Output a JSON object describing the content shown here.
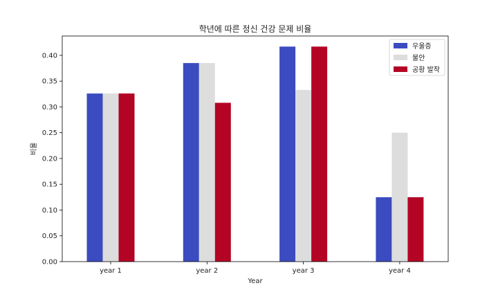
{
  "chart_data": {
    "type": "bar",
    "title": "학년에 따른 정신 건강 문제 비율",
    "xlabel": "Year",
    "ylabel": "비율",
    "categories": [
      "year 1",
      "year 2",
      "year 3",
      "year 4"
    ],
    "series": [
      {
        "name": "우울증",
        "color": "#3b4cc0",
        "values": [
          0.326,
          0.385,
          0.417,
          0.125
        ]
      },
      {
        "name": "불안",
        "color": "#dddddd",
        "values": [
          0.326,
          0.385,
          0.333,
          0.25
        ]
      },
      {
        "name": "공황 발작",
        "color": "#b40426",
        "values": [
          0.326,
          0.308,
          0.417,
          0.125
        ]
      }
    ],
    "ylim": [
      0,
      0.4375
    ],
    "yticks": [
      "0.00",
      "0.05",
      "0.10",
      "0.15",
      "0.20",
      "0.25",
      "0.30",
      "0.35",
      "0.40"
    ],
    "grid": false,
    "legend_position": "top-right"
  }
}
